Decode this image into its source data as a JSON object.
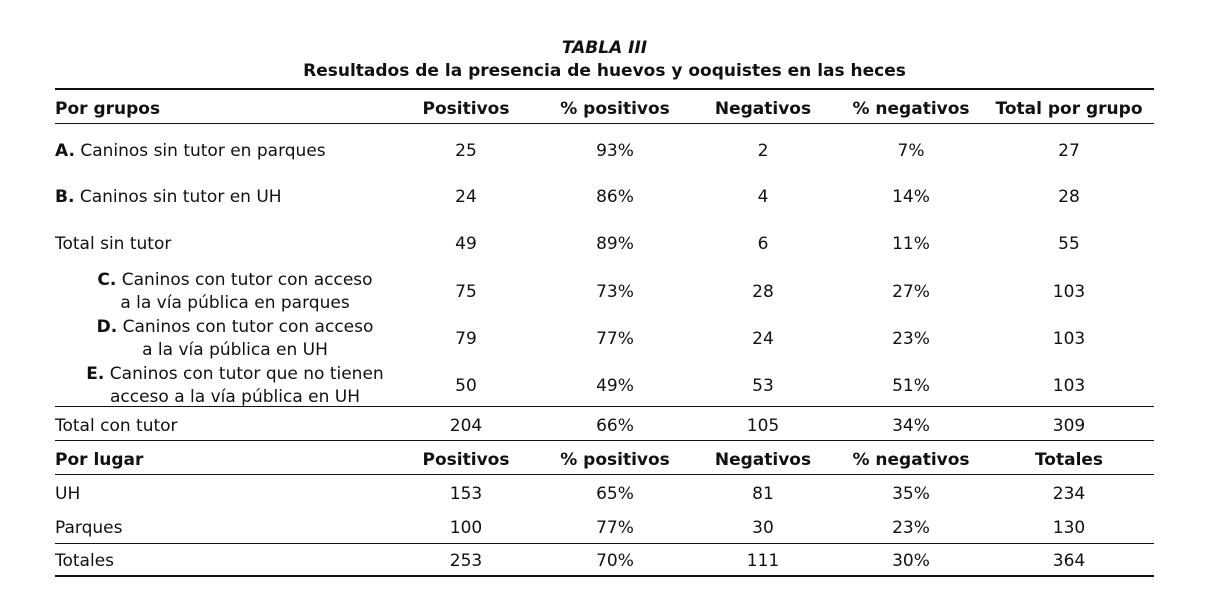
{
  "caption": {
    "number": "TABLA III",
    "title": "Resultados de la presencia de huevos y ooquistes en las heces"
  },
  "groups_header": [
    "Por grupos",
    "Positivos",
    "% positivos",
    "Negativos",
    "% negativos",
    "Total por grupo"
  ],
  "groups_rows": [
    {
      "letter": "A.",
      "label": "Caninos sin tutor en parques",
      "line2": "",
      "positivos": "25",
      "pct_pos": "93%",
      "negativos": "2",
      "pct_neg": "7%",
      "total": "27"
    },
    {
      "letter": "B.",
      "label": "Caninos sin tutor en UH",
      "line2": "",
      "positivos": "24",
      "pct_pos": "86%",
      "negativos": "4",
      "pct_neg": "14%",
      "total": "28"
    },
    {
      "letter": "",
      "label": "Total sin tutor",
      "line2": "",
      "positivos": "49",
      "pct_pos": "89%",
      "negativos": "6",
      "pct_neg": "11%",
      "total": "55"
    },
    {
      "letter": "C.",
      "label": "Caninos con tutor con acceso",
      "line2": "a la vía pública en parques",
      "positivos": "75",
      "pct_pos": "73%",
      "negativos": "28",
      "pct_neg": "27%",
      "total": "103"
    },
    {
      "letter": "D.",
      "label": "Caninos con tutor con acceso",
      "line2": "a la vía pública en UH",
      "positivos": "79",
      "pct_pos": "77%",
      "negativos": "24",
      "pct_neg": "23%",
      "total": "103"
    },
    {
      "letter": "E.",
      "label": "Caninos con tutor que no tienen",
      "line2": "acceso a la vía pública en UH",
      "positivos": "50",
      "pct_pos": "49%",
      "negativos": "53",
      "pct_neg": "51%",
      "total": "103"
    },
    {
      "letter": "",
      "label": "Total con tutor",
      "line2": "",
      "positivos": "204",
      "pct_pos": "66%",
      "negativos": "105",
      "pct_neg": "34%",
      "total": "309"
    }
  ],
  "place_header": [
    "Por lugar",
    "Positivos",
    "% positivos",
    "Negativos",
    "% negativos",
    "Totales"
  ],
  "place_rows": [
    {
      "label": "UH",
      "positivos": "153",
      "pct_pos": "65%",
      "negativos": "81",
      "pct_neg": "35%",
      "total": "234"
    },
    {
      "label": "Parques",
      "positivos": "100",
      "pct_pos": "77%",
      "negativos": "30",
      "pct_neg": "23%",
      "total": "130"
    },
    {
      "label": "Totales",
      "positivos": "253",
      "pct_pos": "70%",
      "negativos": "111",
      "pct_neg": "30%",
      "total": "364"
    }
  ]
}
